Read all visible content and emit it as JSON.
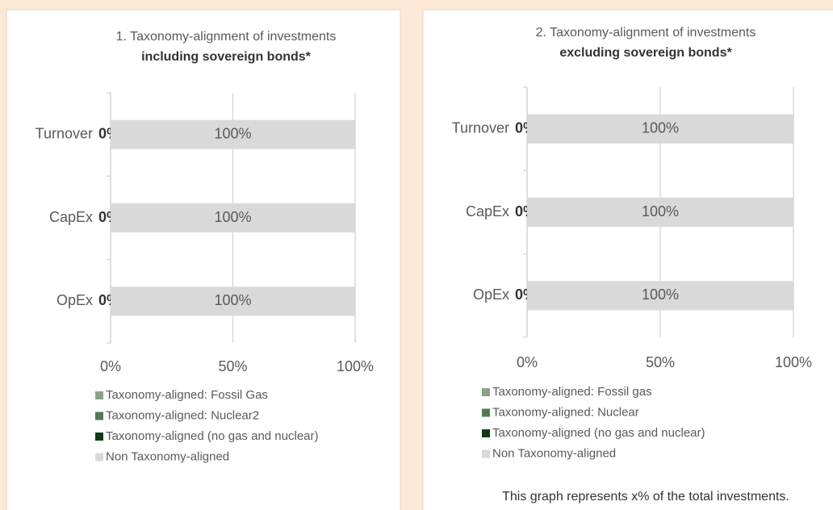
{
  "chart_data": [
    {
      "type": "stacked-bar-horizontal",
      "title": "1. Taxonomy-alignment of investments",
      "subtitle": "including sovereign bonds*",
      "categories": [
        "Turnover",
        "CapEx",
        "OpEx"
      ],
      "series": [
        {
          "name": "Taxonomy-aligned: Fossil Gas",
          "color": "#86a386",
          "values": [
            0,
            0,
            0
          ]
        },
        {
          "name": "Taxonomy-aligned: Nuclear2",
          "color": "#4f7a52",
          "values": [
            0,
            0,
            0
          ]
        },
        {
          "name": "Taxonomy-aligned (no gas and nuclear)",
          "color": "#0f3b14",
          "values": [
            0,
            0,
            0
          ],
          "value_labels": [
            "0%",
            "0%",
            "0%"
          ]
        },
        {
          "name": "Non Taxonomy-aligned",
          "color": "#d9d9d9",
          "values": [
            100,
            100,
            100
          ],
          "value_labels": [
            "100%",
            "100%",
            "100%"
          ]
        }
      ],
      "xlim": [
        0,
        100
      ],
      "xticks": [
        {
          "value": 0,
          "label": "0%"
        },
        {
          "value": 50,
          "label": "50%"
        },
        {
          "value": 100,
          "label": "100%"
        }
      ],
      "grid": true
    },
    {
      "type": "stacked-bar-horizontal",
      "title": "2. Taxonomy-alignment of investments",
      "subtitle": "excluding sovereign bonds*",
      "categories": [
        "Turnover",
        "CapEx",
        "OpEx"
      ],
      "series": [
        {
          "name": "Taxonomy-aligned: Fossil gas",
          "color": "#86a386",
          "values": [
            0,
            0,
            0
          ]
        },
        {
          "name": "Taxonomy-aligned: Nuclear",
          "color": "#4f7a52",
          "values": [
            0,
            0,
            0
          ]
        },
        {
          "name": "Taxonomy-aligned (no gas and nuclear)",
          "color": "#0f3b14",
          "values": [
            0,
            0,
            0
          ],
          "value_labels": [
            "0%",
            "0%",
            "0%"
          ]
        },
        {
          "name": "Non Taxonomy-aligned",
          "color": "#d9d9d9",
          "values": [
            100,
            100,
            100
          ],
          "value_labels": [
            "100%",
            "100%",
            "100%"
          ]
        }
      ],
      "xlim": [
        0,
        100
      ],
      "xticks": [
        {
          "value": 0,
          "label": "0%"
        },
        {
          "value": 50,
          "label": "50%"
        },
        {
          "value": 100,
          "label": "100%"
        }
      ],
      "grid": true,
      "annotation": "This graph represents x% of the total investments."
    }
  ]
}
